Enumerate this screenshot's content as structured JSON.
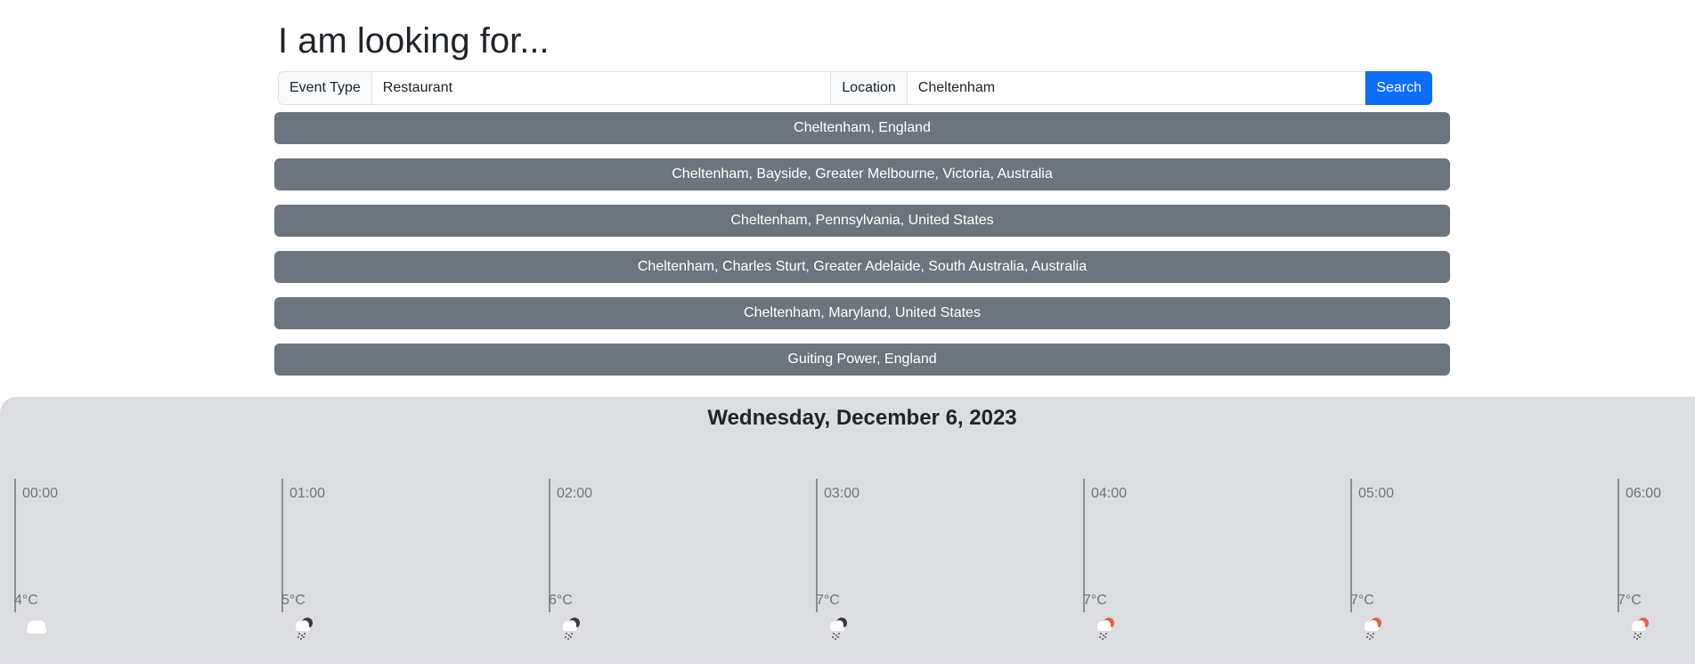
{
  "search": {
    "heading": "I am looking for...",
    "event_label": "Event Type",
    "event_value": "Restaurant",
    "location_label": "Location",
    "location_value": "Cheltenham",
    "button_label": "Search"
  },
  "results": [
    "Cheltenham, England",
    "Cheltenham, Bayside, Greater Melbourne, Victoria, Australia",
    "Cheltenham, Pennsylvania, United States",
    "Cheltenham, Charles Sturt, Greater Adelaide, South Australia, Australia",
    "Cheltenham, Maryland, United States",
    "Guiting Power, England"
  ],
  "weather": {
    "date": "Wednesday, December 6, 2023",
    "hours": [
      {
        "time": "00:00",
        "temp": "4°C",
        "icon": "cloud-icon"
      },
      {
        "time": "01:00",
        "temp": "5°C",
        "icon": "rain-dark-cloud-icon"
      },
      {
        "time": "02:00",
        "temp": "6°C",
        "icon": "rain-dark-cloud-icon"
      },
      {
        "time": "03:00",
        "temp": "7°C",
        "icon": "rain-dark-cloud-icon"
      },
      {
        "time": "04:00",
        "temp": "7°C",
        "icon": "rain-red-cloud-icon"
      },
      {
        "time": "05:00",
        "temp": "7°C",
        "icon": "rain-red-cloud-icon"
      },
      {
        "time": "06:00",
        "temp": "7°C",
        "icon": "rain-red-cloud-icon"
      }
    ],
    "colors": {
      "panel": "#dcdde1",
      "dark_accent": "#3a3a3a",
      "red_accent": "#e8604a"
    }
  }
}
